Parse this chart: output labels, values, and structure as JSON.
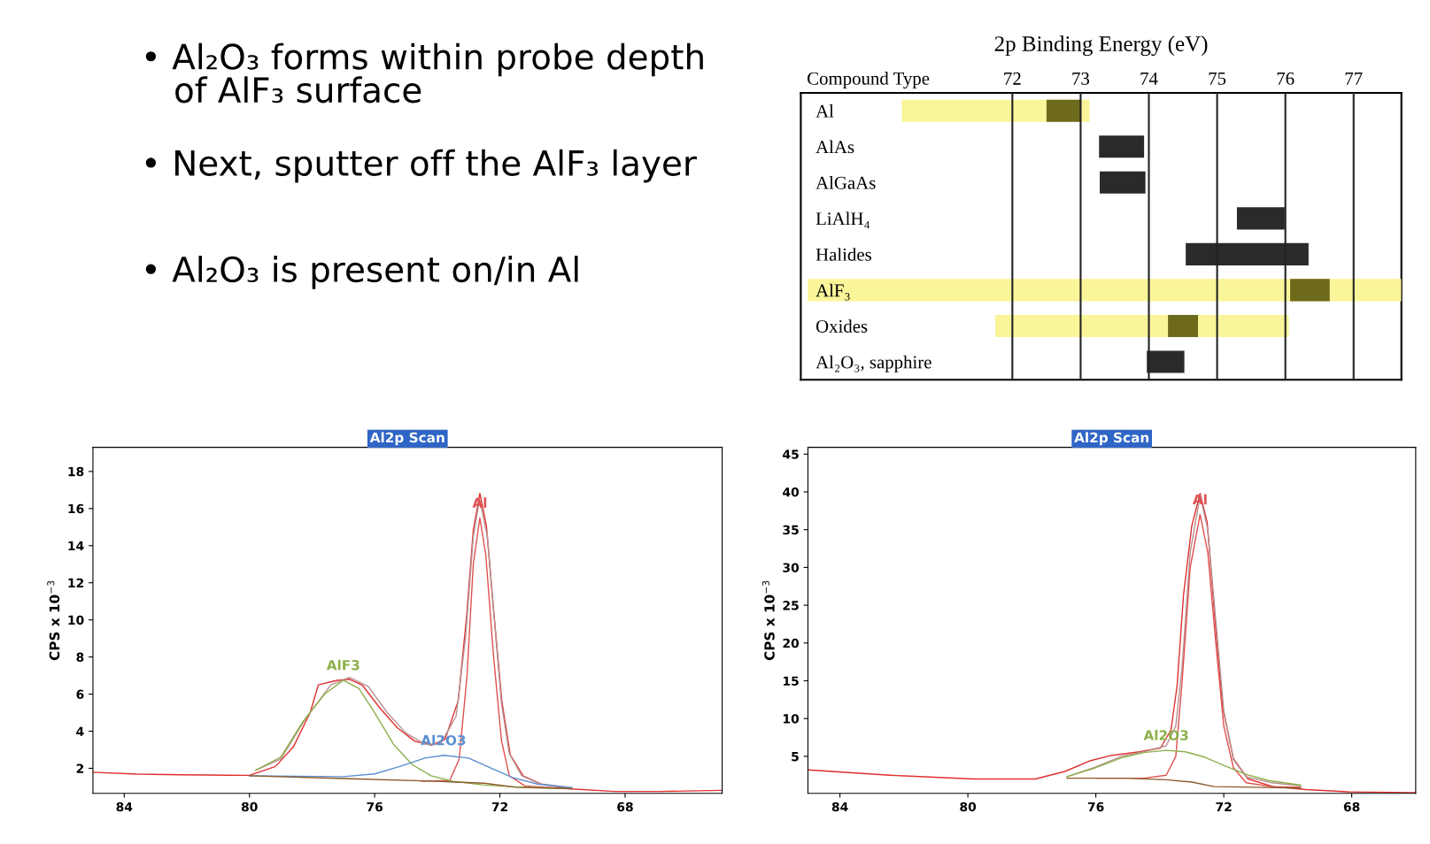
{
  "chart_data": [
    {
      "type": "other",
      "annotations": [
        "• Al₂O₃ forms within probe depth\n   of AlF₃ surface",
        "• Next, sputter off the AlF₃ layer",
        "• Al₂O₃ is present on/in Al"
      ]
    },
    {
      "type": "bar",
      "orientation": "horizontal",
      "title": "2p Binding Energy (eV)",
      "ylabel": "Compound Type",
      "categories": [
        "Al",
        "AlAs",
        "AlGaAs",
        "LiAlH₄",
        "Halides",
        "AlF₃",
        "Oxides",
        "Al₂O₃, sapphire"
      ],
      "xlim": [
        68.9,
        77.7
      ],
      "xticks": [
        72,
        73,
        74,
        75,
        76,
        77
      ],
      "grid": "x",
      "series": [
        {
          "color": "#fbf59a",
          "base": [
            70.38,
            null,
            null,
            null,
            null,
            69.0,
            71.75,
            null
          ],
          "values": [
            2.75,
            null,
            null,
            null,
            null,
            8.7,
            4.3,
            null
          ]
        },
        {
          "colors": [
            "#6e6a1c",
            "#2a2a2a",
            "#2a2a2a",
            "#2a2a2a",
            "#2a2a2a",
            "#6e6a1c",
            "#6e6a1c",
            "#2a2a2a"
          ],
          "base": [
            72.5,
            73.27,
            73.28,
            75.29,
            74.54,
            76.07,
            74.28,
            73.97
          ],
          "values": [
            0.5,
            0.66,
            0.67,
            0.7,
            1.8,
            0.58,
            0.44,
            0.55
          ]
        }
      ]
    },
    {
      "type": "line",
      "title": "Al2p Scan",
      "ylabel": "CPS x 10$^{−3}$",
      "xlim": [
        85,
        64.9
      ],
      "xticks": [
        84,
        80,
        76,
        72,
        68
      ],
      "ylim": [
        0.65,
        19.3
      ],
      "yticks": [
        2,
        4,
        6,
        8,
        10,
        12,
        14,
        16,
        18
      ],
      "series": [
        {
          "color": "#e03030",
          "x": [
            85,
            83.6,
            82.2,
            80,
            79.17,
            78.6,
            78.06,
            77.8,
            77.2,
            76.8,
            76.4,
            75.83,
            75.28,
            74.72,
            74.17,
            73.75,
            73.33,
            73.06,
            72.85,
            72.64,
            72.43,
            72.22,
            71.94,
            71.67,
            71.25,
            70.69,
            69.72,
            68.33,
            66.94,
            64.9
          ],
          "values": [
            1.79,
            1.69,
            1.65,
            1.62,
            2.1,
            3.15,
            5.0,
            6.5,
            6.74,
            6.8,
            6.49,
            5.24,
            4.19,
            3.46,
            3.25,
            3.57,
            5.65,
            10.25,
            14.84,
            16.82,
            15.05,
            10.87,
            5.65,
            2.73,
            1.58,
            1.16,
            0.89,
            0.75,
            0.75,
            0.81
          ]
        },
        {
          "color": "#b89090",
          "x": [
            79.8,
            79,
            78.2,
            77.4,
            76.8,
            76.2,
            75.6,
            75,
            74.4,
            73.9,
            73.4,
            73.1,
            72.85,
            72.65,
            72.4,
            72.2,
            71.95,
            71.7,
            71.3,
            70.7,
            69.7
          ],
          "values": [
            1.9,
            2.5,
            4.7,
            6.5,
            6.9,
            6.4,
            5.0,
            3.9,
            3.3,
            3.3,
            4.8,
            9,
            14.5,
            16.5,
            14.5,
            10.5,
            5.5,
            2.8,
            1.6,
            1.15,
            0.95
          ]
        },
        {
          "name": "Al",
          "color": "#e05050",
          "x": [
            74.5,
            73.6,
            73.3,
            73.05,
            72.85,
            72.64,
            72.45,
            72.2,
            71.95,
            71.7,
            71.2,
            69.8
          ],
          "values": [
            1.3,
            1.35,
            2.5,
            7,
            13,
            15.5,
            13.5,
            8,
            3.5,
            1.6,
            1.05,
            0.9
          ]
        },
        {
          "name": "AlF3",
          "color": "#8db04a",
          "x": [
            79.8,
            79,
            78.3,
            77.6,
            77.0,
            76.5,
            76.0,
            75.4,
            74.8,
            74.2,
            73.5,
            72.5,
            71.5,
            69.7
          ],
          "values": [
            1.9,
            2.6,
            4.5,
            6.0,
            6.75,
            6.3,
            5.0,
            3.3,
            2.2,
            1.6,
            1.3,
            1.1,
            1.0,
            0.9
          ]
        },
        {
          "name": "Al2O3",
          "color": "#5b8fd0",
          "x": [
            80,
            77,
            76,
            75.2,
            74.4,
            73.8,
            73.0,
            72.4,
            71.6,
            70.8,
            69.7
          ],
          "values": [
            1.6,
            1.55,
            1.7,
            2.1,
            2.55,
            2.7,
            2.55,
            2.1,
            1.5,
            1.15,
            0.95
          ]
        },
        {
          "color": "#8b5a2b",
          "x": [
            80,
            77,
            74,
            72.5,
            71.5,
            69.7
          ],
          "values": [
            1.6,
            1.45,
            1.3,
            1.2,
            0.98,
            0.9
          ]
        }
      ]
    },
    {
      "type": "line",
      "title": "Al2p Scan",
      "ylabel": "CPS x 10$^{−3}$",
      "xlim": [
        85,
        66
      ],
      "xticks": [
        84,
        80,
        76,
        72,
        68
      ],
      "ylim": [
        0.1,
        45.9
      ],
      "yticks": [
        5,
        10,
        15,
        20,
        25,
        30,
        35,
        40,
        45
      ],
      "series": [
        {
          "color": "#e03030",
          "x": [
            84.98,
            82.44,
            79.84,
            77.89,
            76.97,
            76.19,
            75.54,
            74.63,
            73.98,
            73.65,
            73.46,
            73.26,
            73.0,
            72.74,
            72.52,
            72.29,
            72.03,
            71.7,
            71.24,
            70.46,
            69.42,
            68.12,
            66
          ],
          "values": [
            3.2,
            2.5,
            2.0,
            2.0,
            3.0,
            4.4,
            5.1,
            5.6,
            6.1,
            8.5,
            14.3,
            26.3,
            35.5,
            39.8,
            36,
            23.9,
            11.4,
            4.7,
            2.0,
            1.0,
            0.6,
            0.3,
            0.2
          ]
        },
        {
          "color": "#b89090",
          "x": [
            76.9,
            76,
            75.2,
            74.4,
            73.8,
            73.5,
            73.3,
            73.05,
            72.74,
            72.5,
            72.25,
            72.0,
            71.7,
            71.3,
            70.5,
            69.6
          ],
          "values": [
            2.3,
            3.6,
            5.0,
            5.7,
            6.4,
            9,
            17,
            32,
            39.5,
            35,
            23,
            11,
            4.6,
            2.3,
            1.5,
            1.1
          ]
        },
        {
          "name": "Al",
          "color": "#e05050",
          "x": [
            76,
            74.5,
            73.8,
            73.5,
            73.3,
            73.05,
            72.74,
            72.5,
            72.25,
            72.0,
            71.7,
            71.3,
            70.5,
            69.6
          ],
          "values": [
            2.1,
            2.1,
            2.5,
            5,
            15,
            30,
            37,
            32,
            20,
            9,
            3.5,
            1.5,
            1.0,
            0.9
          ]
        },
        {
          "name": "Al2O3",
          "color": "#8db04a",
          "x": [
            76.9,
            76,
            75.2,
            74.5,
            73.8,
            73.2,
            72.6,
            72,
            71.3,
            70.6,
            69.6
          ],
          "values": [
            2.3,
            3.5,
            4.8,
            5.5,
            5.8,
            5.6,
            4.9,
            3.8,
            2.6,
            1.8,
            1.2
          ]
        },
        {
          "color": "#8b5a2b",
          "x": [
            76.9,
            75,
            73.8,
            73.0,
            72.3,
            71,
            69.6
          ],
          "values": [
            2.1,
            2.1,
            1.9,
            1.6,
            1.0,
            0.9,
            0.8
          ]
        }
      ]
    }
  ]
}
